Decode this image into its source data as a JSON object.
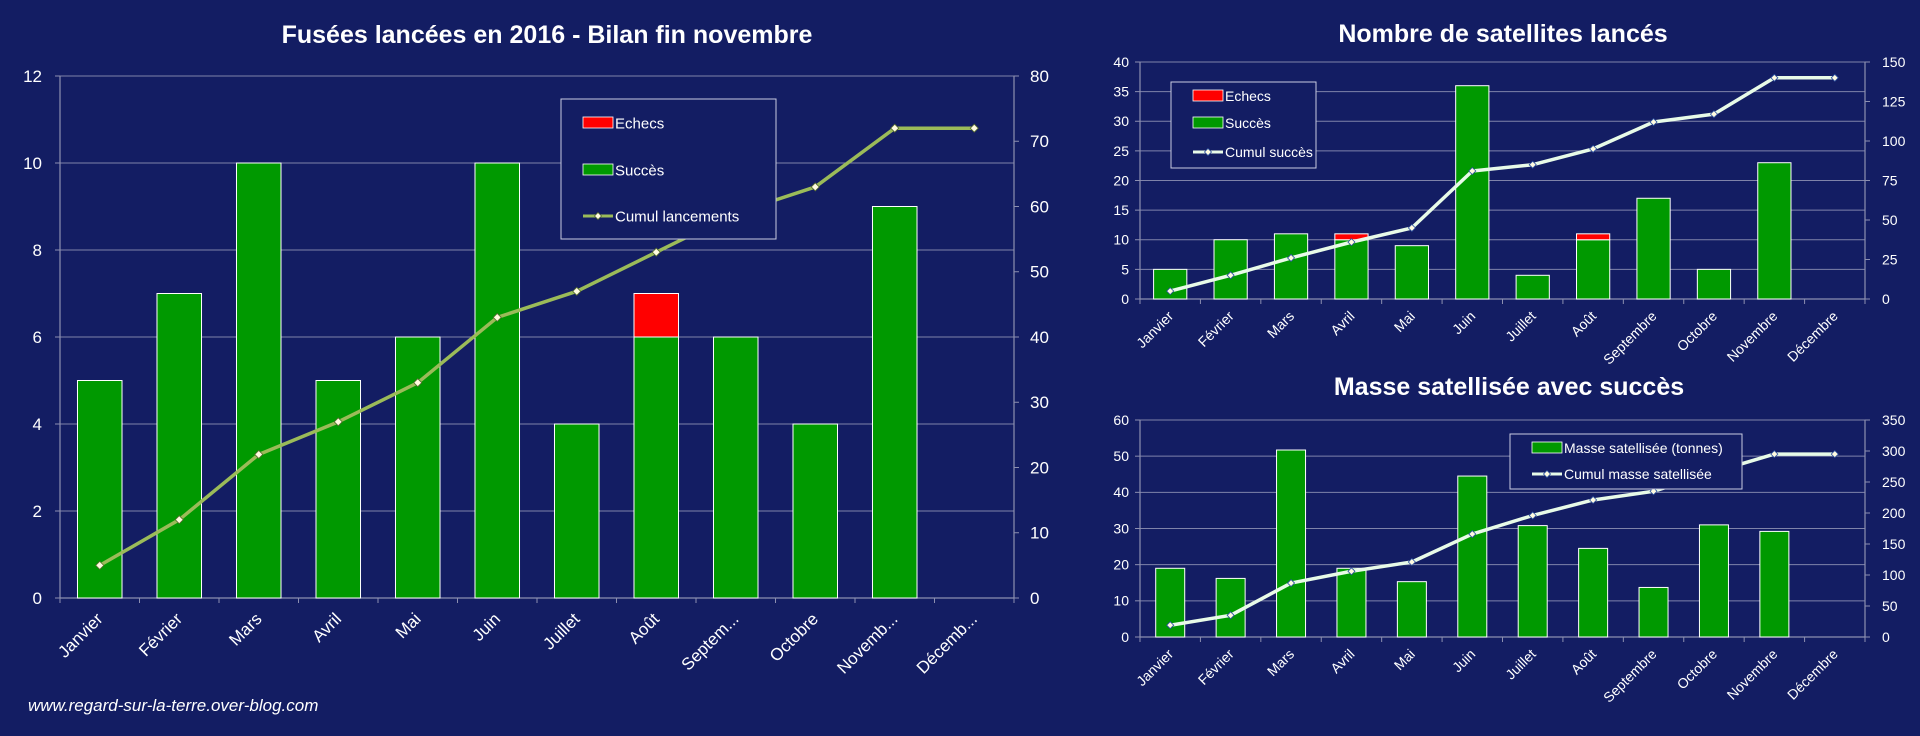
{
  "footer": "www.regard-sur-la-terre.over-blog.com",
  "colors": {
    "background": "#131d63",
    "success": "#009900",
    "failure": "#ff0000",
    "cumul_left": "#9bbb59",
    "cumul_right": "#e8fbe8",
    "axis": "#8c8fb0",
    "grid": "#7f83aa",
    "text": "#ffffff"
  },
  "chart_data": [
    {
      "type": "bar",
      "title": "Fusées lancées en 2016 - Bilan fin novembre",
      "categories": [
        "Janvier",
        "Février",
        "Mars",
        "Avril",
        "Mai",
        "Juin",
        "Juillet",
        "Août",
        "Septem...",
        "Octobre",
        "Novemb...",
        "Décemb..."
      ],
      "series": [
        {
          "name": "Succès",
          "values": [
            5,
            7,
            10,
            5,
            6,
            10,
            4,
            6,
            6,
            4,
            9,
            null
          ]
        },
        {
          "name": "Echecs",
          "values": [
            0,
            0,
            0,
            0,
            0,
            0,
            0,
            1,
            0,
            0,
            0,
            null
          ]
        },
        {
          "name": "Cumul lancements",
          "axis": "right",
          "values": [
            5,
            12,
            22,
            27,
            33,
            43,
            47,
            53,
            59,
            63,
            72,
            72
          ]
        }
      ],
      "ylim": [
        0,
        12
      ],
      "yticks": [
        0,
        2,
        4,
        6,
        8,
        10,
        12
      ],
      "y2lim": [
        0,
        80
      ],
      "y2ticks": [
        0,
        10,
        20,
        30,
        40,
        50,
        60,
        70,
        80
      ],
      "grid": true,
      "legend": "top-right"
    },
    {
      "type": "bar",
      "title": "Nombre de satellites lancés",
      "categories": [
        "Janvier",
        "Février",
        "Mars",
        "Avril",
        "Mai",
        "Juin",
        "Juillet",
        "Août",
        "Septembre",
        "Octobre",
        "Novembre",
        "Décembre"
      ],
      "series": [
        {
          "name": "Succès",
          "values": [
            5,
            10,
            11,
            10,
            9,
            36,
            4,
            10,
            17,
            5,
            23,
            null
          ]
        },
        {
          "name": "Echecs",
          "values": [
            0,
            0,
            0,
            1,
            0,
            0,
            0,
            1,
            0,
            0,
            0,
            null
          ]
        },
        {
          "name": "Cumul succès",
          "axis": "right",
          "values": [
            5,
            15,
            26,
            36,
            45,
            81,
            85,
            95,
            112,
            117,
            140,
            140
          ]
        }
      ],
      "ylim": [
        0,
        40
      ],
      "yticks": [
        0,
        5,
        10,
        15,
        20,
        25,
        30,
        35,
        40
      ],
      "y2lim": [
        0,
        150
      ],
      "y2ticks": [
        0,
        25,
        50,
        75,
        100,
        125,
        150
      ],
      "grid": true,
      "legend": "top-left"
    },
    {
      "type": "bar",
      "title": "Masse satellisée avec succès",
      "categories": [
        "Janvier",
        "Février",
        "Mars",
        "Avril",
        "Mai",
        "Juin",
        "Juillet",
        "Août",
        "Septembre",
        "Octobre",
        "Novembre",
        "Décembre"
      ],
      "series": [
        {
          "name": "Masse satellisée (tonnes)",
          "values": [
            19,
            16.2,
            51.7,
            19,
            15.3,
            44.5,
            30.8,
            24.5,
            13.7,
            31,
            29.2,
            null
          ]
        },
        {
          "name": "Cumul masse satellisée",
          "axis": "right",
          "values": [
            19,
            35,
            87,
            106,
            121,
            166,
            196,
            221,
            235,
            266,
            295,
            295
          ]
        }
      ],
      "ylim": [
        0,
        60
      ],
      "yticks": [
        0,
        10,
        20,
        30,
        40,
        50,
        60
      ],
      "y2lim": [
        0,
        350
      ],
      "y2ticks": [
        0,
        50,
        100,
        150,
        200,
        250,
        300,
        350
      ],
      "grid": true,
      "legend": "top-center"
    }
  ]
}
